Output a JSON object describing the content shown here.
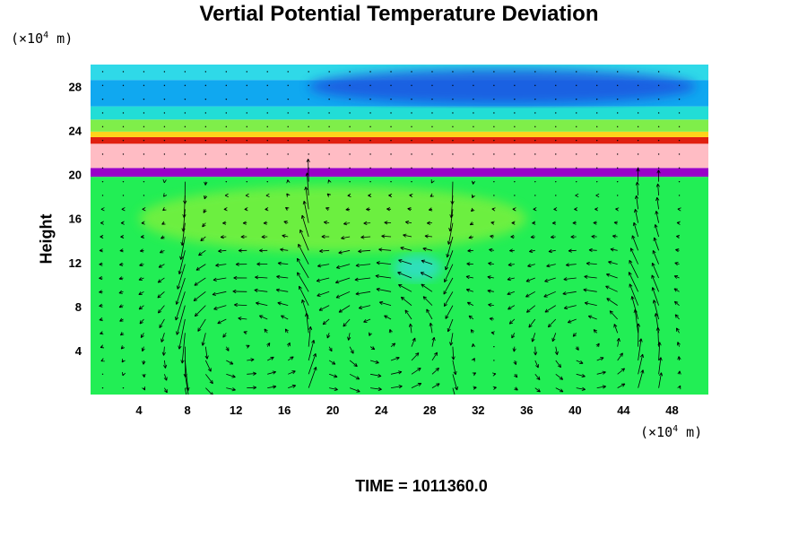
{
  "chart_data": {
    "type": "heatmap",
    "title": "Vertial Potential Temperature Deviation",
    "ylabel": "Height",
    "x_unit_prefix": "(×10",
    "x_unit_exp": "4",
    "x_unit_suffix": " m)",
    "y_unit_prefix": "(×10",
    "y_unit_exp": "4",
    "y_unit_suffix": " m)",
    "xlim": [
      0,
      51
    ],
    "ylim": [
      0,
      30
    ],
    "xticks": [
      4,
      8,
      12,
      16,
      20,
      24,
      28,
      32,
      36,
      40,
      44,
      48
    ],
    "yticks": [
      4,
      8,
      12,
      16,
      20,
      24,
      28
    ],
    "bands": [
      {
        "y0": 0,
        "y1": 19.8,
        "color": "#22ee55"
      },
      {
        "y0": 19.8,
        "y1": 20.6,
        "color": "#9a00c8"
      },
      {
        "y0": 20.6,
        "y1": 22.8,
        "color": "#ffbcc4"
      },
      {
        "y0": 22.8,
        "y1": 23.4,
        "color": "#e02010"
      },
      {
        "y0": 23.4,
        "y1": 23.9,
        "color": "#ffd21a"
      },
      {
        "y0": 23.9,
        "y1": 25.0,
        "color": "#7fee4a"
      },
      {
        "y0": 25.0,
        "y1": 26.2,
        "color": "#22ddd6"
      },
      {
        "y0": 26.2,
        "y1": 28.6,
        "color": "#10a8f0"
      },
      {
        "y0": 28.6,
        "y1": 30.0,
        "color": "#2fd9e8"
      }
    ],
    "blobs": [
      {
        "x": 34,
        "y": 28,
        "rx": 16,
        "ry": 1.6,
        "color": "#1c55e0"
      },
      {
        "x": 20,
        "y": 16,
        "rx": 16,
        "ry": 3,
        "color": "#7af03c"
      },
      {
        "x": 27,
        "y": 11.5,
        "rx": 2,
        "ry": 1.2,
        "color": "#33ddcc"
      }
    ],
    "vortices": [
      {
        "x": 12,
        "y": 5.5,
        "r": 5.5
      },
      {
        "x": 24,
        "y": 6,
        "r": 6.5
      },
      {
        "x": 41,
        "y": 5.5,
        "r": 5.5
      }
    ],
    "jets": [
      {
        "x": 8,
        "dir": -1
      },
      {
        "x": 18,
        "dir": 1
      },
      {
        "x": 30,
        "dir": -1
      },
      {
        "x": 46,
        "dir": 1
      }
    ]
  },
  "footer": {
    "time_label": "TIME = 1011360.0"
  }
}
